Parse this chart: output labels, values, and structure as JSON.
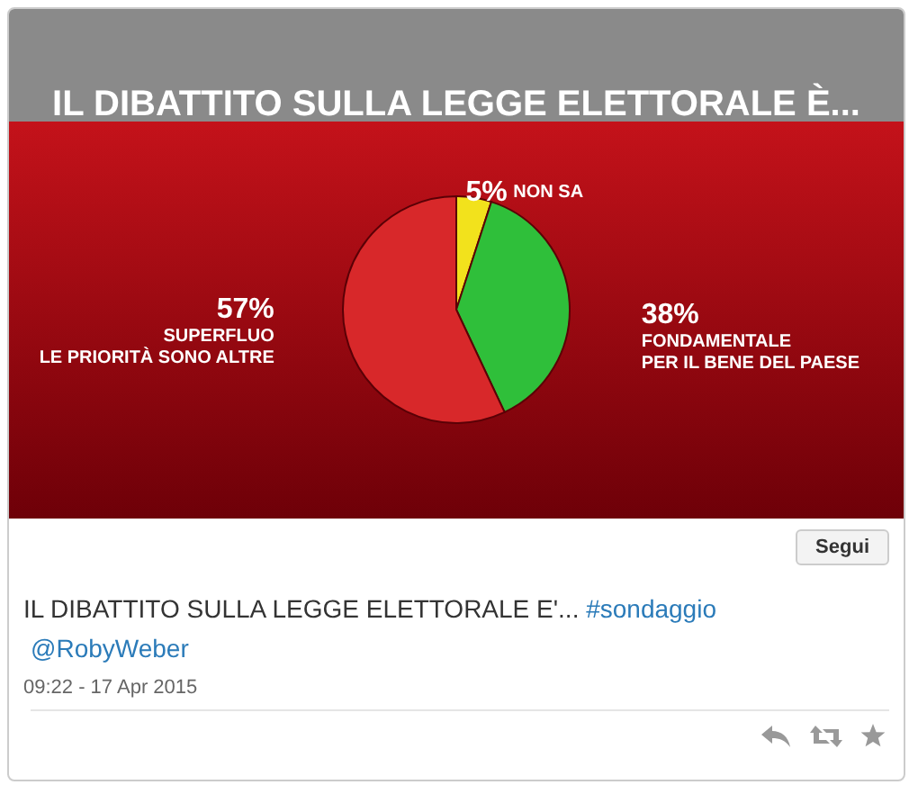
{
  "chart_data": {
    "type": "pie",
    "title": "IL DIBATTITO SULLA LEGGE ELETTORALE È...",
    "categories": [
      "NON SA",
      "FONDAMENTALE\nPER IL BENE DEL PAESE",
      "SUPERFLUO\nLE PRIORITÀ SONO ALTRE"
    ],
    "values": [
      5,
      38,
      57
    ],
    "value_labels": [
      "5%",
      "38%",
      "57%"
    ],
    "colors": [
      "#f2e21c",
      "#2fbf3a",
      "#d8282a"
    ],
    "annotations": [
      "IL DIBATTITO SULLA LEGGE ELETTORALE E'... #sondaggio",
      "@RobyWeber",
      "09:22 - 17 Apr 2015",
      "Segui"
    ]
  }
}
